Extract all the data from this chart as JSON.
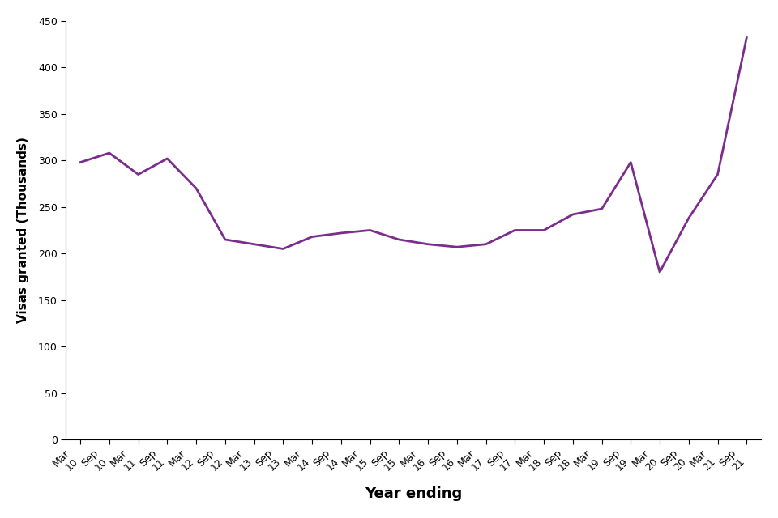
{
  "labels_line1": [
    "Mar",
    "Sep",
    "Mar",
    "Sep",
    "Mar",
    "Sep",
    "Mar",
    "Sep",
    "Mar",
    "Sep",
    "Mar",
    "Sep",
    "Mar",
    "Sep",
    "Mar",
    "Sep",
    "Mar",
    "Sep",
    "Mar",
    "Sep",
    "Mar",
    "Sep",
    "Mar",
    "Sep"
  ],
  "labels_line2": [
    "10",
    "10",
    "11",
    "11",
    "12",
    "12",
    "13",
    "13",
    "14",
    "14",
    "15",
    "15",
    "16",
    "16",
    "17",
    "17",
    "18",
    "18",
    "19",
    "19",
    "20",
    "20",
    "21",
    "21"
  ],
  "values": [
    298,
    308,
    285,
    302,
    270,
    215,
    210,
    205,
    218,
    222,
    225,
    215,
    210,
    207,
    210,
    225,
    225,
    242,
    248,
    298,
    180,
    238,
    285,
    432
  ],
  "line_color": "#7B2D8B",
  "line_width": 2.0,
  "xlabel": "Year ending",
  "ylabel": "Visas granted (Thousands)",
  "ylim": [
    0,
    450
  ],
  "yticks": [
    0,
    50,
    100,
    150,
    200,
    250,
    300,
    350,
    400,
    450
  ],
  "background_color": "#ffffff",
  "xlabel_fontsize": 13,
  "ylabel_fontsize": 11,
  "tick_fontsize": 9
}
